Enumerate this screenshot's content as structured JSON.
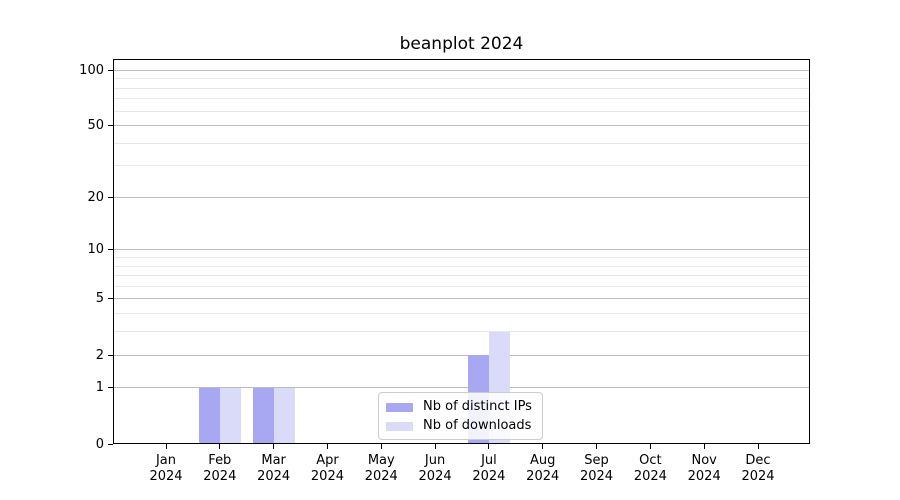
{
  "chart_data": {
    "type": "bar",
    "title": "beanplot 2024",
    "x_categories": [
      {
        "month": "Jan",
        "year": "2024"
      },
      {
        "month": "Feb",
        "year": "2024"
      },
      {
        "month": "Mar",
        "year": "2024"
      },
      {
        "month": "Apr",
        "year": "2024"
      },
      {
        "month": "May",
        "year": "2024"
      },
      {
        "month": "Jun",
        "year": "2024"
      },
      {
        "month": "Jul",
        "year": "2024"
      },
      {
        "month": "Aug",
        "year": "2024"
      },
      {
        "month": "Sep",
        "year": "2024"
      },
      {
        "month": "Oct",
        "year": "2024"
      },
      {
        "month": "Nov",
        "year": "2024"
      },
      {
        "month": "Dec",
        "year": "2024"
      }
    ],
    "series": [
      {
        "name": "Nb of distinct IPs",
        "color": "#a8a8f2",
        "values": [
          0,
          1,
          1,
          0,
          0,
          0,
          2,
          0,
          0,
          0,
          0,
          0
        ]
      },
      {
        "name": "Nb of downloads",
        "color": "#dadaf9",
        "values": [
          0,
          1,
          1,
          0,
          0,
          0,
          3,
          0,
          0,
          0,
          0,
          0
        ]
      }
    ],
    "yscale": "log1p",
    "ylim": [
      0,
      115
    ],
    "y_major_ticks": [
      0,
      1,
      2,
      5,
      10,
      20,
      50,
      100
    ],
    "y_minor_gridlines": [
      3,
      4,
      6,
      7,
      8,
      9,
      30,
      40,
      60,
      70,
      80,
      90
    ],
    "grid": true,
    "legend_position": "lower center"
  },
  "colors": {
    "background": "#ffffff",
    "axis": "#000000",
    "grid_major": "#bcbcbc",
    "grid_minor": "#e7e7e7",
    "legend_border": "#cccccc"
  }
}
